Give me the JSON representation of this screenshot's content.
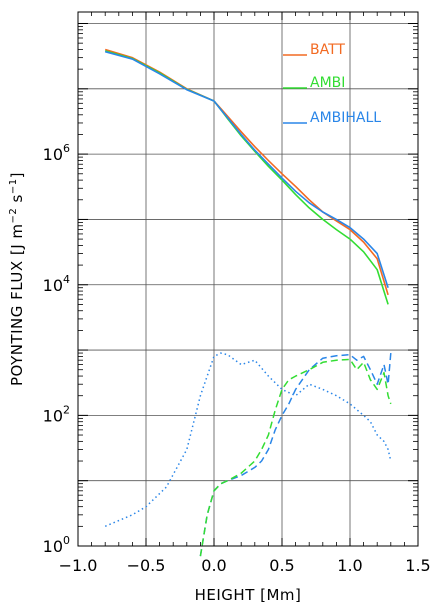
{
  "chart_data": {
    "type": "line",
    "xlabel": "HEIGHT [Mm]",
    "ylabel": "POYNTING FLUX [J m⁻² s⁻¹]",
    "ylabel_parts": [
      "POYNTING FLUX ",
      "[J m",
      "−2",
      " s",
      "−1",
      "]"
    ],
    "xlim": [
      -1.0,
      1.5
    ],
    "ylim": [
      1,
      150000000.0
    ],
    "yscale": "log",
    "grid": true,
    "xticks": [
      -1.0,
      -0.5,
      0.0,
      0.5,
      1.0,
      1.5
    ],
    "xtick_labels": [
      "−1.0",
      "−0.5",
      "0.0",
      "0.5",
      "1.0",
      "1.5"
    ],
    "yticks": [
      {
        "value": 1,
        "base": "10",
        "exp": "0"
      },
      {
        "value": 100,
        "base": "10",
        "exp": "2"
      },
      {
        "value": 10000,
        "base": "10",
        "exp": "4"
      },
      {
        "value": 1000000,
        "base": "10",
        "exp": "6"
      }
    ],
    "legend_placement": "top-right",
    "colors": {
      "BATT": "#f26a22",
      "AMBI": "#33dd33",
      "AMBIHALL": "#2a86e8"
    },
    "series": [
      {
        "name": "BATT",
        "style": "solid",
        "color": "#f26a22",
        "x": [
          -0.8,
          -0.6,
          -0.4,
          -0.2,
          0.0,
          0.05,
          0.1,
          0.2,
          0.3,
          0.4,
          0.5,
          0.6,
          0.7,
          0.8,
          0.9,
          1.0,
          1.1,
          1.2,
          1.28
        ],
        "y": [
          40000000,
          30000000,
          18000000,
          10000000,
          6500000,
          5000000,
          3800000,
          2200000,
          1300000,
          800000,
          500000,
          320000,
          200000,
          130000,
          95000,
          70000,
          45000,
          25000,
          7000
        ]
      },
      {
        "name": "AMBI",
        "style": "solid",
        "color": "#33dd33",
        "x": [
          -0.8,
          -0.6,
          -0.4,
          -0.2,
          0.0,
          0.05,
          0.1,
          0.2,
          0.3,
          0.4,
          0.5,
          0.6,
          0.7,
          0.8,
          0.9,
          1.0,
          1.1,
          1.2,
          1.28
        ],
        "y": [
          38000000,
          29000000,
          17500000,
          9800000,
          6500000,
          4800000,
          3500000,
          1900000,
          1100000,
          650000,
          400000,
          240000,
          150000,
          100000,
          70000,
          50000,
          32000,
          17000,
          5000
        ]
      },
      {
        "name": "AMBIHALL",
        "style": "solid",
        "color": "#2a86e8",
        "x": [
          -0.8,
          -0.6,
          -0.4,
          -0.2,
          0.0,
          0.05,
          0.1,
          0.2,
          0.3,
          0.4,
          0.5,
          0.6,
          0.7,
          0.8,
          0.9,
          1.0,
          1.1,
          1.2,
          1.28
        ],
        "y": [
          37000000,
          28500000,
          17000000,
          9700000,
          6500000,
          4800000,
          3600000,
          2000000,
          1150000,
          700000,
          430000,
          270000,
          180000,
          130000,
          100000,
          75000,
          50000,
          30000,
          9000
        ]
      },
      {
        "name": "BATT",
        "style": "dashed",
        "color": "#2a86e8",
        "x": [
          -0.1,
          -0.05,
          0.0,
          0.05,
          0.1,
          0.2,
          0.3,
          0.35,
          0.4,
          0.45,
          0.5,
          0.55,
          0.6,
          0.7,
          0.8,
          0.9,
          1.0,
          1.05,
          1.1,
          1.15,
          1.2,
          1.25,
          1.28,
          1.3
        ],
        "y": [
          0.7,
          3,
          7,
          9,
          10,
          12,
          16,
          20,
          30,
          60,
          100,
          150,
          250,
          500,
          750,
          820,
          850,
          700,
          800,
          500,
          300,
          600,
          300,
          900
        ]
      },
      {
        "name": "AMBI",
        "style": "dashed",
        "color": "#33dd33",
        "x": [
          -0.1,
          -0.05,
          0.0,
          0.05,
          0.1,
          0.2,
          0.3,
          0.35,
          0.4,
          0.45,
          0.5,
          0.55,
          0.6,
          0.7,
          0.8,
          0.9,
          1.0,
          1.05,
          1.1,
          1.15,
          1.2,
          1.25,
          1.28,
          1.3
        ],
        "y": [
          0.7,
          3,
          7,
          9,
          10,
          13,
          20,
          30,
          50,
          120,
          250,
          350,
          400,
          500,
          650,
          700,
          720,
          500,
          650,
          350,
          250,
          450,
          200,
          150
        ]
      },
      {
        "name": "AMBIHALL",
        "style": "dotted",
        "color": "#2a86e8",
        "x": [
          -0.8,
          -0.6,
          -0.5,
          -0.35,
          -0.2,
          -0.1,
          0.0,
          0.05,
          0.1,
          0.2,
          0.3,
          0.4,
          0.5,
          0.6,
          0.7,
          0.8,
          0.9,
          1.0,
          1.1,
          1.15,
          1.2,
          1.25,
          1.28,
          1.3
        ],
        "y": [
          2,
          3,
          4,
          8,
          30,
          200,
          800,
          900,
          850,
          600,
          700,
          400,
          250,
          200,
          300,
          250,
          200,
          150,
          100,
          80,
          50,
          40,
          30,
          20
        ]
      }
    ]
  }
}
